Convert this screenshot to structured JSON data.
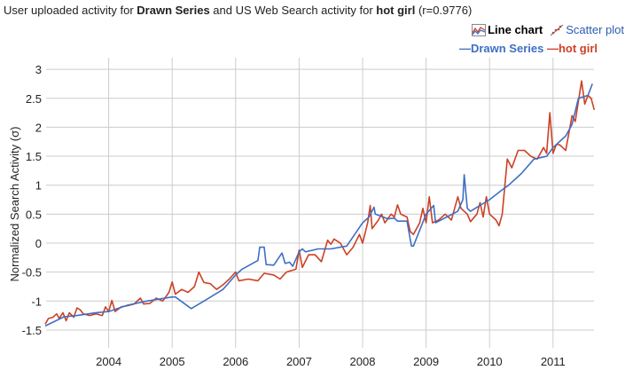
{
  "header": {
    "title_prefix": "User uploaded activity for ",
    "series_a": "Drawn Series",
    "title_mid": " and US Web Search activity for ",
    "series_b": "hot girl",
    "correlation": " (r=0.9776)"
  },
  "views": {
    "line_chart": "Line chart",
    "scatter_plot": "Scatter plot",
    "line_icon": "line-chart-icon",
    "scatter_icon": "scatter-plot-icon"
  },
  "legend": {
    "a": "—Drawn Series",
    "b": "—hot girl"
  },
  "colors": {
    "drawn": "#3e6fc4",
    "hotgirl": "#cc4125",
    "grid": "#cccccc"
  },
  "chart_data": {
    "type": "line",
    "title": "User uploaded activity for Drawn Series and US Web Search activity for hot girl (r=0.9776)",
    "xlabel": "",
    "ylabel": "Normalized Search Activity (σ)",
    "xlim": [
      2003.0,
      2011.68
    ],
    "ylim": [
      -1.8,
      3.2
    ],
    "grid": true,
    "legend_position": "top-right",
    "x_ticks": [
      "2004",
      "2005",
      "2006",
      "2007",
      "2008",
      "2009",
      "2010",
      "2011"
    ],
    "x_tick_values": [
      2004,
      2005,
      2006,
      2007,
      2008,
      2009,
      2010,
      2011
    ],
    "y_ticks": [
      "3",
      "2.5",
      "2",
      "1.5",
      "1",
      "0.5",
      "0",
      "-0.5",
      "-1",
      "-1.5"
    ],
    "y_tick_values": [
      3,
      2.5,
      2,
      1.5,
      1,
      0.5,
      0,
      -0.5,
      -1,
      -1.5
    ],
    "series": [
      {
        "name": "Drawn Series",
        "color": "#3e6fc4",
        "x": [
          2003.0,
          2003.3,
          2003.5,
          2003.8,
          2004.0,
          2004.3,
          2004.6,
          2005.0,
          2005.05,
          2005.3,
          2005.5,
          2005.8,
          2006.0,
          2006.1,
          2006.35,
          2006.38,
          2006.45,
          2006.48,
          2006.6,
          2006.73,
          2006.78,
          2006.85,
          2006.9,
          2007.0,
          2007.05,
          2007.1,
          2007.3,
          2007.5,
          2007.75,
          2008.0,
          2008.1,
          2008.18,
          2008.2,
          2008.4,
          2008.5,
          2008.55,
          2008.7,
          2008.77,
          2008.8,
          2009.0,
          2009.12,
          2009.15,
          2009.5,
          2009.58,
          2009.6,
          2009.65,
          2009.7,
          2010.0,
          2010.2,
          2010.3,
          2010.5,
          2010.7,
          2010.9,
          2011.0,
          2011.2,
          2011.3,
          2011.4,
          2011.55,
          2011.62
        ],
        "y": [
          -1.43,
          -1.27,
          -1.25,
          -1.2,
          -1.18,
          -1.07,
          -1.0,
          -0.93,
          -0.93,
          -1.13,
          -1.0,
          -0.8,
          -0.55,
          -0.45,
          -0.3,
          -0.07,
          -0.07,
          -0.37,
          -0.38,
          -0.17,
          -0.35,
          -0.33,
          -0.4,
          -0.15,
          -0.1,
          -0.15,
          -0.1,
          -0.1,
          -0.05,
          0.35,
          0.45,
          0.62,
          0.5,
          0.42,
          0.43,
          0.38,
          0.38,
          -0.05,
          -0.05,
          0.5,
          0.65,
          0.35,
          0.55,
          0.75,
          1.18,
          0.6,
          0.55,
          0.75,
          0.92,
          1.0,
          1.2,
          1.45,
          1.5,
          1.65,
          1.85,
          2.05,
          2.5,
          2.55,
          2.75
        ]
      },
      {
        "name": "hot girl",
        "color": "#cc4125",
        "x": [
          2003.0,
          2003.05,
          2003.12,
          2003.18,
          2003.22,
          2003.28,
          2003.33,
          2003.38,
          2003.45,
          2003.5,
          2003.55,
          2003.6,
          2003.7,
          2003.8,
          2003.9,
          2003.95,
          2004.0,
          2004.05,
          2004.1,
          2004.2,
          2004.3,
          2004.4,
          2004.5,
          2004.55,
          2004.65,
          2004.75,
          2004.85,
          2004.95,
          2005.0,
          2005.05,
          2005.15,
          2005.25,
          2005.35,
          2005.42,
          2005.5,
          2005.6,
          2005.7,
          2005.8,
          2005.9,
          2006.0,
          2006.05,
          2006.2,
          2006.35,
          2006.45,
          2006.6,
          2006.7,
          2006.8,
          2006.95,
          2007.0,
          2007.05,
          2007.15,
          2007.25,
          2007.35,
          2007.45,
          2007.5,
          2007.55,
          2007.65,
          2007.75,
          2007.85,
          2007.95,
          2008.0,
          2008.08,
          2008.12,
          2008.15,
          2008.25,
          2008.3,
          2008.35,
          2008.45,
          2008.5,
          2008.55,
          2008.6,
          2008.7,
          2008.75,
          2008.8,
          2008.9,
          2008.95,
          2009.0,
          2009.05,
          2009.1,
          2009.2,
          2009.3,
          2009.4,
          2009.45,
          2009.5,
          2009.55,
          2009.65,
          2009.7,
          2009.8,
          2009.85,
          2009.9,
          2009.95,
          2010.0,
          2010.1,
          2010.15,
          2010.2,
          2010.28,
          2010.35,
          2010.45,
          2010.55,
          2010.65,
          2010.75,
          2010.85,
          2010.9,
          2010.95,
          2011.0,
          2011.05,
          2011.1,
          2011.2,
          2011.3,
          2011.35,
          2011.45,
          2011.5,
          2011.55,
          2011.6,
          2011.65
        ],
        "y": [
          -1.4,
          -1.3,
          -1.28,
          -1.22,
          -1.3,
          -1.2,
          -1.34,
          -1.2,
          -1.28,
          -1.12,
          -1.15,
          -1.22,
          -1.25,
          -1.22,
          -1.25,
          -1.1,
          -1.18,
          -0.99,
          -1.18,
          -1.1,
          -1.08,
          -1.05,
          -0.95,
          -1.05,
          -1.04,
          -0.95,
          -1.0,
          -0.85,
          -0.67,
          -0.88,
          -0.8,
          -0.85,
          -0.75,
          -0.5,
          -0.68,
          -0.7,
          -0.8,
          -0.72,
          -0.62,
          -0.5,
          -0.65,
          -0.62,
          -0.65,
          -0.52,
          -0.55,
          -0.62,
          -0.5,
          -0.45,
          -0.12,
          -0.42,
          -0.2,
          -0.2,
          -0.32,
          0.05,
          -0.02,
          0.07,
          0.0,
          -0.2,
          -0.07,
          0.15,
          0.0,
          0.35,
          0.65,
          0.25,
          0.4,
          0.5,
          0.35,
          0.5,
          0.45,
          0.66,
          0.5,
          0.45,
          0.2,
          0.15,
          0.35,
          0.6,
          0.35,
          0.8,
          0.35,
          0.4,
          0.5,
          0.4,
          0.6,
          0.8,
          0.6,
          0.5,
          0.37,
          0.5,
          0.7,
          0.45,
          0.8,
          0.5,
          0.4,
          0.3,
          0.5,
          1.45,
          1.3,
          1.6,
          1.6,
          1.5,
          1.45,
          1.65,
          1.55,
          2.25,
          1.55,
          1.7,
          1.7,
          1.6,
          2.2,
          2.1,
          2.8,
          2.4,
          2.55,
          2.5,
          2.3
        ]
      }
    ]
  }
}
